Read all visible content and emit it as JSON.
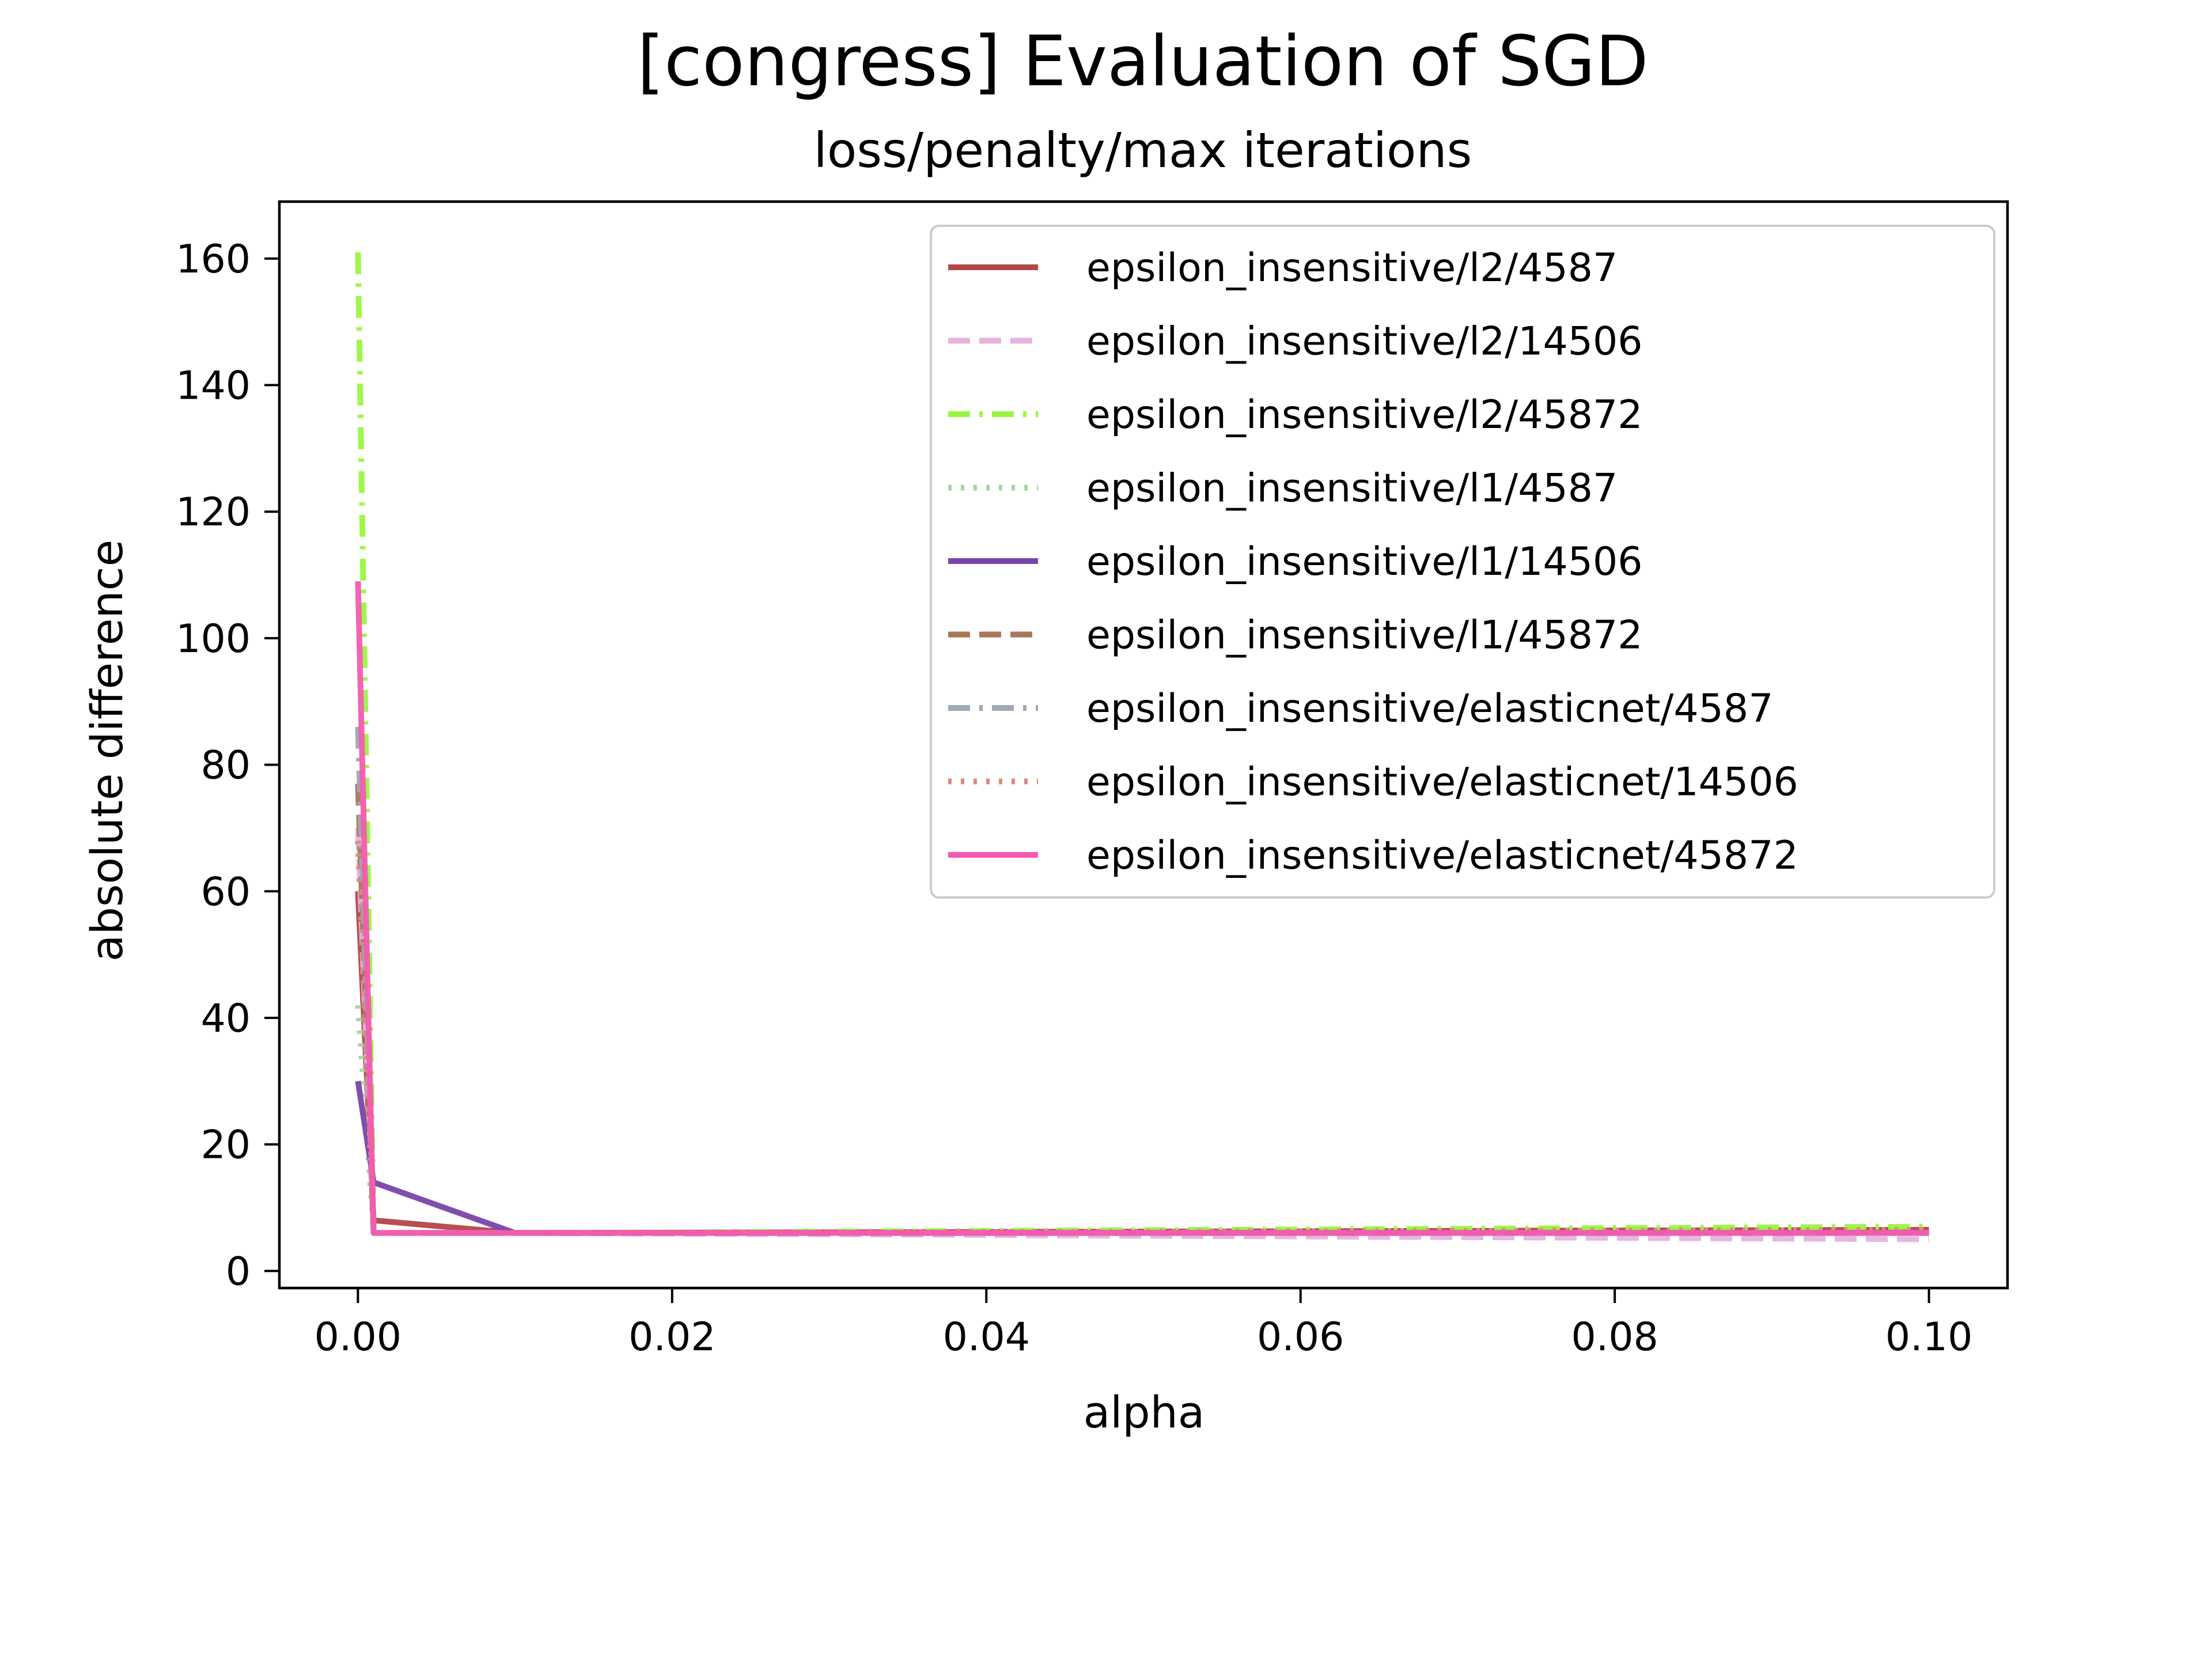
{
  "chart_data": {
    "type": "line",
    "title": "[congress] Evaluation of SGD",
    "subtitle": "loss/penalty/max iterations",
    "xlabel": "alpha",
    "ylabel": "absolute difference",
    "xlim": [
      -0.005,
      0.105
    ],
    "ylim": [
      -2.7,
      169
    ],
    "xticks": [
      0.0,
      0.02,
      0.04,
      0.06,
      0.08,
      0.1
    ],
    "xtick_labels": [
      "0.00",
      "0.02",
      "0.04",
      "0.06",
      "0.08",
      "0.10"
    ],
    "yticks": [
      0,
      20,
      40,
      60,
      80,
      100,
      120,
      140,
      160
    ],
    "ytick_labels": [
      "0",
      "20",
      "40",
      "60",
      "80",
      "100",
      "120",
      "140",
      "160"
    ],
    "grid": false,
    "legend_position": "upper-right",
    "x": [
      0.0,
      0.001,
      0.01,
      0.1
    ],
    "series": [
      {
        "name": "epsilon_insensitive/l2/4587",
        "values": [
          60,
          8,
          6,
          6.5
        ],
        "color": "#b2474a",
        "dash": "solid"
      },
      {
        "name": "epsilon_insensitive/l2/14506",
        "values": [
          70,
          6,
          6,
          5
        ],
        "color": "#e6b3e0",
        "dash": "dashed"
      },
      {
        "name": "epsilon_insensitive/l2/45872",
        "values": [
          161,
          6,
          6,
          7
        ],
        "color": "#9af542",
        "dash": "dashdot"
      },
      {
        "name": "epsilon_insensitive/l1/4587",
        "values": [
          42,
          6,
          6,
          6
        ],
        "color": "#a9d4a6",
        "dash": "dotted"
      },
      {
        "name": "epsilon_insensitive/l1/14506",
        "values": [
          30,
          14,
          6,
          6
        ],
        "color": "#7a45ab",
        "dash": "solid"
      },
      {
        "name": "epsilon_insensitive/l1/45872",
        "values": [
          77,
          6,
          6,
          6
        ],
        "color": "#a8785a",
        "dash": "dashed"
      },
      {
        "name": "epsilon_insensitive/elasticnet/4587",
        "values": [
          86,
          6,
          6,
          6
        ],
        "color": "#9fa8b5",
        "dash": "dashdot"
      },
      {
        "name": "epsilon_insensitive/elasticnet/14506",
        "values": [
          68,
          6,
          6,
          6.5
        ],
        "color": "#d98a84",
        "dash": "dotted"
      },
      {
        "name": "epsilon_insensitive/elasticnet/45872",
        "values": [
          109,
          6,
          6,
          6
        ],
        "color": "#f35bb0",
        "dash": "solid"
      }
    ]
  }
}
